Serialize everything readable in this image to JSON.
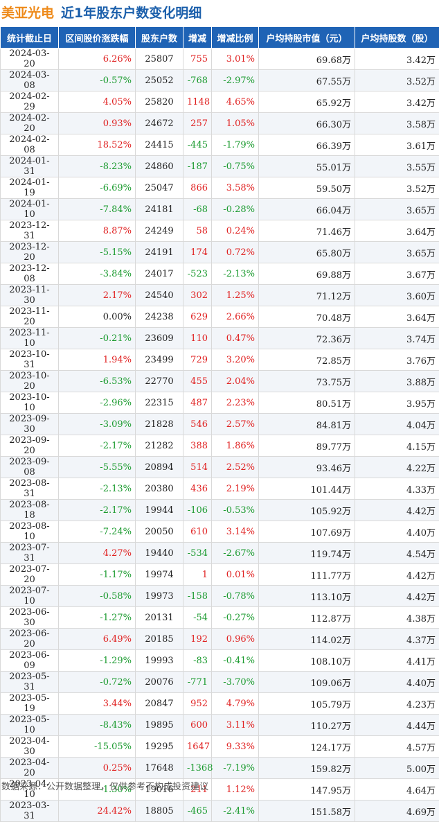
{
  "header": {
    "stock_name": "美亚光电",
    "subtitle": "近1年股东户数变化明细"
  },
  "table": {
    "columns": [
      "统计截止日",
      "区间股价涨跌幅",
      "股东户数",
      "增减",
      "增减比例",
      "户均持股市值（元）",
      "户均持股数（股）"
    ],
    "rows": [
      {
        "date": "2024-03-20",
        "change": "6.26%",
        "holders": "25807",
        "delta": "755",
        "ratio": "3.01%",
        "value": "69.68万",
        "shares": "3.42万"
      },
      {
        "date": "2024-03-08",
        "change": "-0.57%",
        "holders": "25052",
        "delta": "-768",
        "ratio": "-2.97%",
        "value": "67.55万",
        "shares": "3.52万"
      },
      {
        "date": "2024-02-29",
        "change": "4.05%",
        "holders": "25820",
        "delta": "1148",
        "ratio": "4.65%",
        "value": "65.92万",
        "shares": "3.42万"
      },
      {
        "date": "2024-02-20",
        "change": "0.93%",
        "holders": "24672",
        "delta": "257",
        "ratio": "1.05%",
        "value": "66.30万",
        "shares": "3.58万"
      },
      {
        "date": "2024-02-08",
        "change": "18.52%",
        "holders": "24415",
        "delta": "-445",
        "ratio": "-1.79%",
        "value": "66.39万",
        "shares": "3.61万"
      },
      {
        "date": "2024-01-31",
        "change": "-8.23%",
        "holders": "24860",
        "delta": "-187",
        "ratio": "-0.75%",
        "value": "55.01万",
        "shares": "3.55万"
      },
      {
        "date": "2024-01-19",
        "change": "-6.69%",
        "holders": "25047",
        "delta": "866",
        "ratio": "3.58%",
        "value": "59.50万",
        "shares": "3.52万"
      },
      {
        "date": "2024-01-10",
        "change": "-7.84%",
        "holders": "24181",
        "delta": "-68",
        "ratio": "-0.28%",
        "value": "66.04万",
        "shares": "3.65万"
      },
      {
        "date": "2023-12-31",
        "change": "8.87%",
        "holders": "24249",
        "delta": "58",
        "ratio": "0.24%",
        "value": "71.46万",
        "shares": "3.64万"
      },
      {
        "date": "2023-12-20",
        "change": "-5.15%",
        "holders": "24191",
        "delta": "174",
        "ratio": "0.72%",
        "value": "65.80万",
        "shares": "3.65万"
      },
      {
        "date": "2023-12-08",
        "change": "-3.84%",
        "holders": "24017",
        "delta": "-523",
        "ratio": "-2.13%",
        "value": "69.88万",
        "shares": "3.67万"
      },
      {
        "date": "2023-11-30",
        "change": "2.17%",
        "holders": "24540",
        "delta": "302",
        "ratio": "1.25%",
        "value": "71.12万",
        "shares": "3.60万"
      },
      {
        "date": "2023-11-20",
        "change": "0.00%",
        "holders": "24238",
        "delta": "629",
        "ratio": "2.66%",
        "value": "70.48万",
        "shares": "3.64万"
      },
      {
        "date": "2023-11-10",
        "change": "-0.21%",
        "holders": "23609",
        "delta": "110",
        "ratio": "0.47%",
        "value": "72.36万",
        "shares": "3.74万"
      },
      {
        "date": "2023-10-31",
        "change": "1.94%",
        "holders": "23499",
        "delta": "729",
        "ratio": "3.20%",
        "value": "72.85万",
        "shares": "3.76万"
      },
      {
        "date": "2023-10-20",
        "change": "-6.53%",
        "holders": "22770",
        "delta": "455",
        "ratio": "2.04%",
        "value": "73.75万",
        "shares": "3.88万"
      },
      {
        "date": "2023-10-10",
        "change": "-2.96%",
        "holders": "22315",
        "delta": "487",
        "ratio": "2.23%",
        "value": "80.51万",
        "shares": "3.95万"
      },
      {
        "date": "2023-09-30",
        "change": "-3.09%",
        "holders": "21828",
        "delta": "546",
        "ratio": "2.57%",
        "value": "84.81万",
        "shares": "4.04万"
      },
      {
        "date": "2023-09-20",
        "change": "-2.17%",
        "holders": "21282",
        "delta": "388",
        "ratio": "1.86%",
        "value": "89.77万",
        "shares": "4.15万"
      },
      {
        "date": "2023-09-08",
        "change": "-5.55%",
        "holders": "20894",
        "delta": "514",
        "ratio": "2.52%",
        "value": "93.46万",
        "shares": "4.22万"
      },
      {
        "date": "2023-08-31",
        "change": "-2.13%",
        "holders": "20380",
        "delta": "436",
        "ratio": "2.19%",
        "value": "101.44万",
        "shares": "4.33万"
      },
      {
        "date": "2023-08-18",
        "change": "-2.17%",
        "holders": "19944",
        "delta": "-106",
        "ratio": "-0.53%",
        "value": "105.92万",
        "shares": "4.42万"
      },
      {
        "date": "2023-08-10",
        "change": "-7.24%",
        "holders": "20050",
        "delta": "610",
        "ratio": "3.14%",
        "value": "107.69万",
        "shares": "4.40万"
      },
      {
        "date": "2023-07-31",
        "change": "4.27%",
        "holders": "19440",
        "delta": "-534",
        "ratio": "-2.67%",
        "value": "119.74万",
        "shares": "4.54万"
      },
      {
        "date": "2023-07-20",
        "change": "-1.17%",
        "holders": "19974",
        "delta": "1",
        "ratio": "0.01%",
        "value": "111.77万",
        "shares": "4.42万"
      },
      {
        "date": "2023-07-10",
        "change": "-0.58%",
        "holders": "19973",
        "delta": "-158",
        "ratio": "-0.78%",
        "value": "113.10万",
        "shares": "4.42万"
      },
      {
        "date": "2023-06-30",
        "change": "-1.27%",
        "holders": "20131",
        "delta": "-54",
        "ratio": "-0.27%",
        "value": "112.87万",
        "shares": "4.38万"
      },
      {
        "date": "2023-06-20",
        "change": "6.49%",
        "holders": "20185",
        "delta": "192",
        "ratio": "0.96%",
        "value": "114.02万",
        "shares": "4.37万"
      },
      {
        "date": "2023-06-09",
        "change": "-1.29%",
        "holders": "19993",
        "delta": "-83",
        "ratio": "-0.41%",
        "value": "108.10万",
        "shares": "4.41万"
      },
      {
        "date": "2023-05-31",
        "change": "-0.72%",
        "holders": "20076",
        "delta": "-771",
        "ratio": "-3.70%",
        "value": "109.06万",
        "shares": "4.40万"
      },
      {
        "date": "2023-05-19",
        "change": "3.44%",
        "holders": "20847",
        "delta": "952",
        "ratio": "4.79%",
        "value": "105.79万",
        "shares": "4.23万"
      },
      {
        "date": "2023-05-10",
        "change": "-8.43%",
        "holders": "19895",
        "delta": "600",
        "ratio": "3.11%",
        "value": "110.27万",
        "shares": "4.44万"
      },
      {
        "date": "2023-04-30",
        "change": "-15.05%",
        "holders": "19295",
        "delta": "1647",
        "ratio": "9.33%",
        "value": "124.17万",
        "shares": "4.57万"
      },
      {
        "date": "2023-04-20",
        "change": "0.25%",
        "holders": "17648",
        "delta": "-1368",
        "ratio": "-7.19%",
        "value": "159.82万",
        "shares": "5.00万"
      },
      {
        "date": "2023-04-10",
        "change": "-1.30%",
        "holders": "19016",
        "delta": "211",
        "ratio": "1.12%",
        "value": "147.95万",
        "shares": "4.64万"
      },
      {
        "date": "2023-03-31",
        "change": "24.42%",
        "holders": "18805",
        "delta": "-465",
        "ratio": "-2.41%",
        "value": "151.58万",
        "shares": "4.69万"
      }
    ]
  },
  "footer": {
    "source": "数据来源：公开数据整理，仅供参考不构成投资建议"
  },
  "colors": {
    "header_bg": "#1f63b5",
    "positive": "#e02020",
    "negative": "#1a9a2e",
    "stock_name": "#ee8a1a",
    "subtitle": "#1b5fab"
  }
}
